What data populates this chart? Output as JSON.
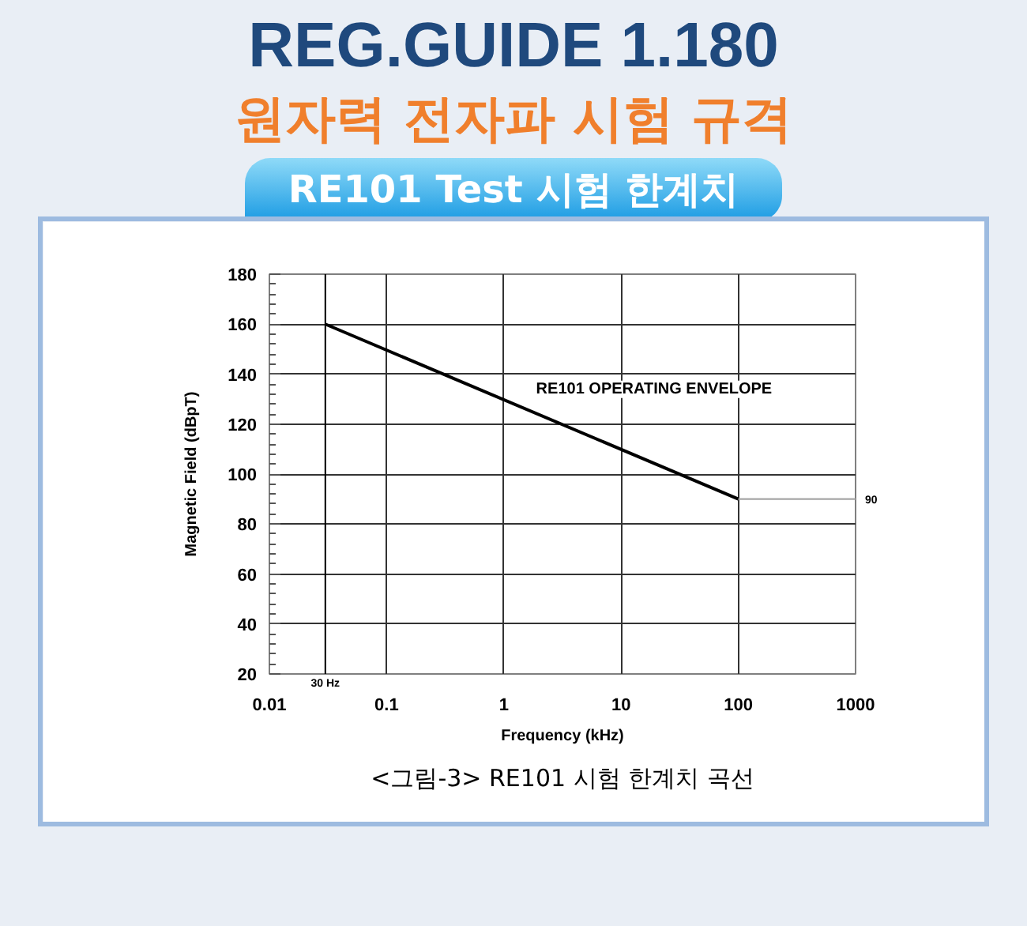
{
  "chart_data": {
    "type": "line",
    "title": "REG.GUIDE 1.180",
    "subtitle": "원자력 전자파 시험 규격",
    "xlabel": "Frequency (kHz)",
    "ylabel": "Magnetic Field (dBpT)",
    "annotations": [
      "RE101 Test 시험 한계치",
      "RE101 OPERATING ENVELOPE",
      "<그림-3> RE101 시험 한계치 곡선",
      {
        "text": "90",
        "x": 1000,
        "y": 90
      }
    ],
    "series": [
      {
        "x": [
          0.03,
          100
        ],
        "values": [
          160,
          90
        ],
        "color": "#000000"
      },
      {
        "x": [
          100,
          1000
        ],
        "values": [
          90,
          90
        ],
        "color": "#a6a6a6"
      }
    ],
    "log": "x",
    "xlim": [
      0.01,
      1000
    ],
    "ylim": [
      20,
      180
    ],
    "xticks": [
      0.01,
      0.1,
      1,
      10,
      100,
      1000
    ],
    "yticks": [
      20,
      40,
      60,
      80,
      100,
      120,
      140,
      160,
      180
    ],
    "grid": true,
    "line_style": "solid",
    "ref_lines": [
      {
        "axis": "x",
        "value": 0.03,
        "label": "30 Hz"
      }
    ]
  }
}
